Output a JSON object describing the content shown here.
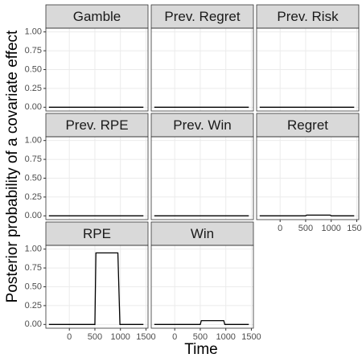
{
  "xlabel": "Time",
  "ylabel": "Posterior probability of a covariate effect",
  "xlim": [
    -460,
    1540
  ],
  "xticks": [
    0,
    500,
    1000,
    1500
  ],
  "ylim": [
    -0.05,
    1.05
  ],
  "yticks": [
    {
      "value": 0,
      "label": "0.00"
    },
    {
      "value": 0.25,
      "label": "0.25"
    },
    {
      "value": 0.5,
      "label": "0.50"
    },
    {
      "value": 0.75,
      "label": "0.75"
    },
    {
      "value": 1,
      "label": "1.00"
    }
  ],
  "grid": true,
  "chart_data": [
    {
      "type": "line",
      "title": "Gamble",
      "color": "#000000",
      "x": [
        -400,
        1450
      ],
      "values": [
        0,
        0
      ]
    },
    {
      "type": "line",
      "title": "Prev. Regret",
      "color": "#000000",
      "x": [
        -400,
        1450
      ],
      "values": [
        0,
        0
      ]
    },
    {
      "type": "line",
      "title": "Prev. Risk",
      "color": "#000000",
      "x": [
        -400,
        1450
      ],
      "values": [
        0,
        0
      ]
    },
    {
      "type": "line",
      "title": "Prev. RPE",
      "color": "#000000",
      "x": [
        -400,
        1450
      ],
      "values": [
        0,
        0
      ]
    },
    {
      "type": "line",
      "title": "Prev. Win",
      "color": "#000000",
      "x": [
        -400,
        1450
      ],
      "values": [
        0,
        0
      ]
    },
    {
      "type": "line",
      "title": "Regret",
      "color": "#000000",
      "x": [
        -400,
        500,
        520,
        980,
        1000,
        1450
      ],
      "values": [
        0,
        0,
        0.01,
        0.01,
        0,
        0
      ]
    },
    {
      "type": "line",
      "title": "RPE",
      "color": "#000000",
      "x": [
        -400,
        500,
        520,
        950,
        990,
        1450
      ],
      "values": [
        0,
        0,
        0.95,
        0.95,
        0,
        0
      ]
    },
    {
      "type": "line",
      "title": "Win",
      "color": "#000000",
      "x": [
        -400,
        500,
        520,
        960,
        980,
        1450
      ],
      "values": [
        0,
        0,
        0.05,
        0.05,
        0,
        0
      ]
    }
  ]
}
